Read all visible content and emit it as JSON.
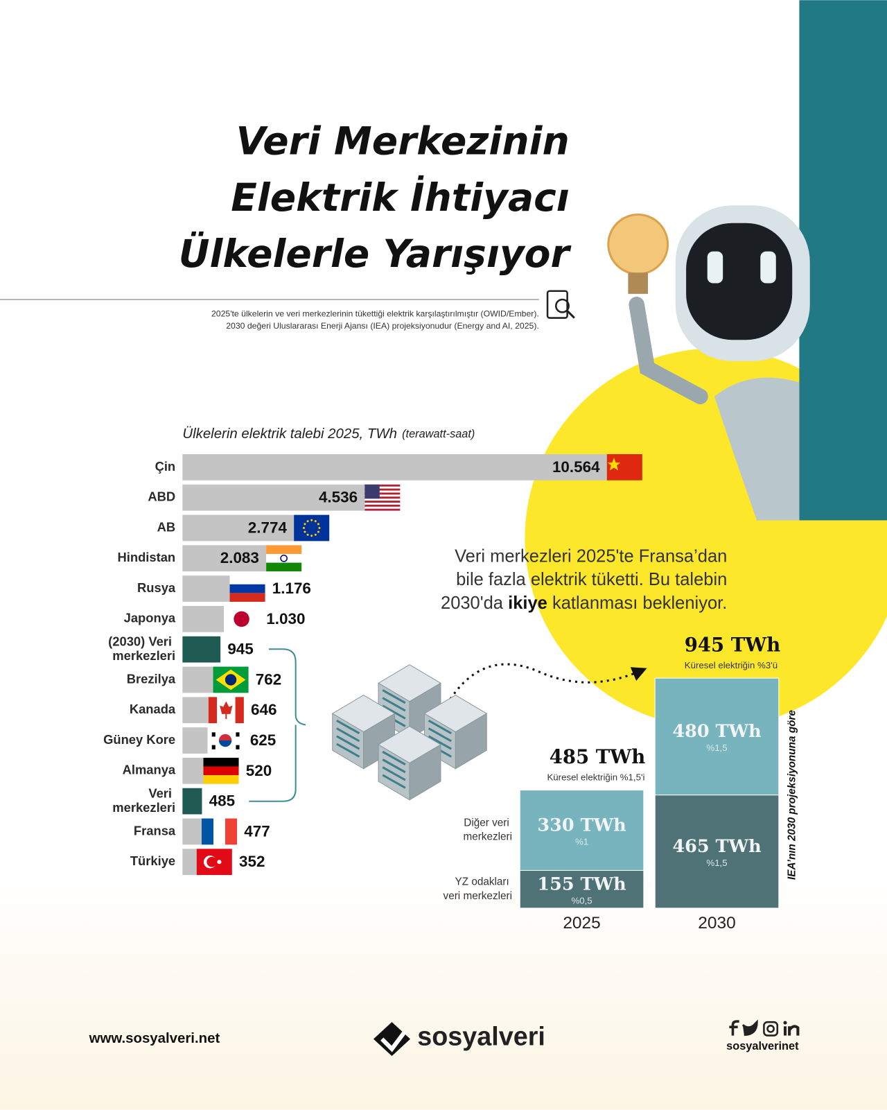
{
  "header": {
    "title": [
      "Veri Merkezinin",
      "Elektrik İhtiyacı",
      "Ülkelerle Yarışıyor"
    ],
    "source": [
      "2025'te ülkelerin ve veri merkezlerinin tükettiği elektrik karşılaştırılmıştır (OWID/Ember).",
      "2030 değeri Uluslararası Enerji Ajansı (IEA) projeksiyonudur (Energy and AI, 2025)."
    ]
  },
  "chart_data": [
    {
      "type": "bar",
      "orientation": "horizontal",
      "title": "Ülkelerin elektrik talebi 2025, TWh",
      "title_note": "(terawatt-saat)",
      "categories": [
        "Çin",
        "ABD",
        "AB",
        "Hindistan",
        "Rusya",
        "Japonya",
        "(2030) Veri merkezleri",
        "Brezilya",
        "Kanada",
        "Güney Kore",
        "Almanya",
        "Veri merkezleri",
        "Fransa",
        "Türkiye"
      ],
      "values": [
        10564,
        4536,
        2774,
        2083,
        1176,
        1030,
        945,
        762,
        646,
        625,
        520,
        485,
        477,
        352
      ],
      "value_labels": [
        "10.564",
        "4.536",
        "2.774",
        "2.083",
        "1.176",
        "1.030",
        "945",
        "762",
        "646",
        "625",
        "520",
        "485",
        "477",
        "352"
      ],
      "colors": [
        "#c4c4c4",
        "#c4c4c4",
        "#c4c4c4",
        "#c4c4c4",
        "#c4c4c4",
        "#c4c4c4",
        "#1f5b52",
        "#c4c4c4",
        "#c4c4c4",
        "#c4c4c4",
        "#c4c4c4",
        "#1f5b52",
        "#c4c4c4",
        "#c4c4c4"
      ]
    },
    {
      "type": "stacked_bar",
      "categories": [
        "2025",
        "2030"
      ],
      "series": [
        {
          "name": "YZ odakları veri merkezleri",
          "color": "#4f7276",
          "values": [
            155,
            465
          ],
          "value_labels": [
            "155 TWh",
            "465 TWh"
          ],
          "share_labels": [
            "%0,5",
            "%1,5"
          ]
        },
        {
          "name": "Diğer veri merkezleri",
          "color": "#77b4be",
          "values": [
            330,
            480
          ],
          "value_labels": [
            "330 TWh",
            "480 TWh"
          ],
          "share_labels": [
            "%1",
            "%1,5"
          ]
        }
      ],
      "totals": [
        485,
        945
      ],
      "total_labels": [
        "485 TWh",
        "945 TWh"
      ],
      "total_notes": [
        "Küresel elektriğin %1,5'i",
        "Küresel elektriğin %3'ü"
      ],
      "side_note": "IEA’nın 2030 projeksiyonuna göre"
    }
  ],
  "callout": {
    "lines": [
      "Veri merkezleri 2025'te Fransa’dan",
      "bile fazla elektrik tüketti. Bu talebin"
    ],
    "last_line": [
      "2030'da",
      "ikiye",
      "katlanması bekleniyor."
    ]
  },
  "footer": {
    "website": "www.sosyalveri.net",
    "brand": "sosyalveri",
    "handle": "sosyalverinet"
  }
}
